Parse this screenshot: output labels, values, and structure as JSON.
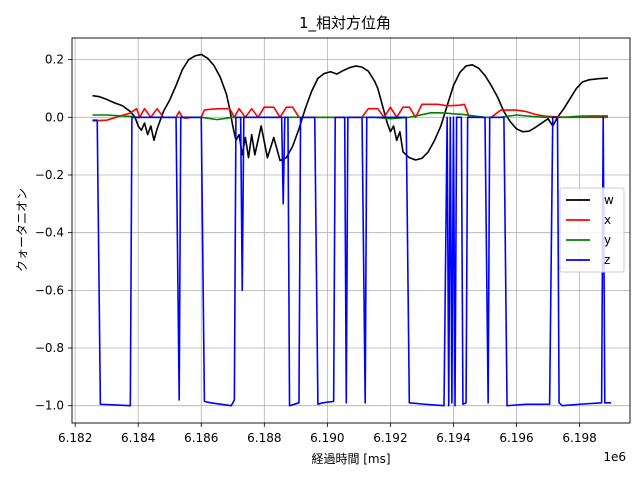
{
  "chart_data": {
    "type": "line",
    "title": "1_相対方位角",
    "xlabel": "経過時間 [ms]",
    "ylabel": "クォータニオン",
    "x_offset_label": "1e6",
    "xlim": [
      6.1819,
      6.1996
    ],
    "ylim": [
      -1.06,
      0.275
    ],
    "xticks": [
      6.182,
      6.184,
      6.186,
      6.188,
      6.19,
      6.192,
      6.194,
      6.196,
      6.198
    ],
    "xtick_labels": [
      "6.182",
      "6.184",
      "6.186",
      "6.188",
      "6.190",
      "6.192",
      "6.194",
      "6.196",
      "6.198"
    ],
    "yticks": [
      0.2,
      0.0,
      -0.2,
      -0.4,
      -0.6,
      -0.8,
      -1.0
    ],
    "ytick_labels": [
      "0.2",
      "0.0",
      "−0.2",
      "−0.4",
      "−0.6",
      "−0.8",
      "−1.0"
    ],
    "grid": true,
    "legend_position": "right",
    "series": [
      {
        "name": "w",
        "color": "#000000",
        "points": [
          [
            6.18255,
            0.075
          ],
          [
            6.18275,
            0.072
          ],
          [
            6.183,
            0.062
          ],
          [
            6.18325,
            0.05
          ],
          [
            6.1835,
            0.04
          ],
          [
            6.18375,
            0.02
          ],
          [
            6.1839,
            0.0
          ],
          [
            6.184,
            -0.03
          ],
          [
            6.1841,
            -0.045
          ],
          [
            6.1842,
            -0.02
          ],
          [
            6.1843,
            -0.06
          ],
          [
            6.1844,
            -0.03
          ],
          [
            6.1845,
            -0.08
          ],
          [
            6.1846,
            -0.04
          ],
          [
            6.1848,
            0.02
          ],
          [
            6.185,
            0.06
          ],
          [
            6.1852,
            0.11
          ],
          [
            6.1854,
            0.165
          ],
          [
            6.1856,
            0.2
          ],
          [
            6.1858,
            0.213
          ],
          [
            6.186,
            0.218
          ],
          [
            6.1862,
            0.205
          ],
          [
            6.1864,
            0.18
          ],
          [
            6.1866,
            0.14
          ],
          [
            6.1868,
            0.08
          ],
          [
            6.1869,
            0.03
          ],
          [
            6.187,
            -0.03
          ],
          [
            6.1871,
            -0.08
          ],
          [
            6.1872,
            -0.06
          ],
          [
            6.1873,
            -0.13
          ],
          [
            6.1874,
            -0.07
          ],
          [
            6.1875,
            -0.14
          ],
          [
            6.1876,
            -0.06
          ],
          [
            6.1877,
            -0.13
          ],
          [
            6.1879,
            -0.03
          ],
          [
            6.1881,
            -0.14
          ],
          [
            6.1883,
            -0.07
          ],
          [
            6.1885,
            -0.15
          ],
          [
            6.1887,
            -0.14
          ],
          [
            6.1889,
            -0.1
          ],
          [
            6.1891,
            -0.04
          ],
          [
            6.1893,
            0.03
          ],
          [
            6.1895,
            0.09
          ],
          [
            6.1897,
            0.135
          ],
          [
            6.1899,
            0.152
          ],
          [
            6.1901,
            0.158
          ],
          [
            6.1903,
            0.15
          ],
          [
            6.1905,
            0.162
          ],
          [
            6.1907,
            0.172
          ],
          [
            6.1909,
            0.178
          ],
          [
            6.1911,
            0.174
          ],
          [
            6.1913,
            0.16
          ],
          [
            6.1915,
            0.125
          ],
          [
            6.1916,
            0.1
          ],
          [
            6.1917,
            0.06
          ],
          [
            6.1918,
            0.02
          ],
          [
            6.1919,
            -0.02
          ],
          [
            6.192,
            -0.05
          ],
          [
            6.1921,
            -0.03
          ],
          [
            6.1922,
            -0.08
          ],
          [
            6.1923,
            -0.05
          ],
          [
            6.1924,
            -0.12
          ],
          [
            6.1926,
            -0.14
          ],
          [
            6.1928,
            -0.148
          ],
          [
            6.193,
            -0.142
          ],
          [
            6.1932,
            -0.12
          ],
          [
            6.1934,
            -0.08
          ],
          [
            6.1936,
            -0.03
          ],
          [
            6.1938,
            0.04
          ],
          [
            6.194,
            0.11
          ],
          [
            6.1942,
            0.155
          ],
          [
            6.1944,
            0.178
          ],
          [
            6.1946,
            0.182
          ],
          [
            6.1948,
            0.17
          ],
          [
            6.195,
            0.145
          ],
          [
            6.1952,
            0.11
          ],
          [
            6.1954,
            0.07
          ],
          [
            6.1956,
            0.02
          ],
          [
            6.1958,
            -0.015
          ],
          [
            6.196,
            -0.04
          ],
          [
            6.1962,
            -0.05
          ],
          [
            6.1964,
            -0.048
          ],
          [
            6.1966,
            -0.035
          ],
          [
            6.1968,
            -0.02
          ],
          [
            6.197,
            -0.005
          ],
          [
            6.19715,
            -0.03
          ],
          [
            6.1973,
            0.0
          ],
          [
            6.1975,
            0.03
          ],
          [
            6.1977,
            0.065
          ],
          [
            6.1979,
            0.1
          ],
          [
            6.1981,
            0.123
          ],
          [
            6.1983,
            0.13
          ],
          [
            6.1986,
            0.134
          ],
          [
            6.1989,
            0.136
          ]
        ]
      },
      {
        "name": "x",
        "color": "#ff0000",
        "points": [
          [
            6.18255,
            -0.012
          ],
          [
            6.183,
            -0.01
          ],
          [
            6.18375,
            0.015
          ],
          [
            6.18395,
            0.03
          ],
          [
            6.18405,
            0.0
          ],
          [
            6.1842,
            0.03
          ],
          [
            6.1844,
            0.0
          ],
          [
            6.1846,
            0.03
          ],
          [
            6.1848,
            0.0
          ],
          [
            6.185,
            0.0
          ],
          [
            6.1852,
            0.0
          ],
          [
            6.1853,
            0.02
          ],
          [
            6.1854,
            0.0
          ],
          [
            6.1855,
            -0.003
          ],
          [
            6.1857,
            0.0
          ],
          [
            6.186,
            0.0
          ],
          [
            6.1861,
            0.025
          ],
          [
            6.1863,
            0.028
          ],
          [
            6.1866,
            0.03
          ],
          [
            6.1869,
            0.03
          ],
          [
            6.18705,
            0.0
          ],
          [
            6.1872,
            0.03
          ],
          [
            6.1874,
            0.0
          ],
          [
            6.1876,
            0.03
          ],
          [
            6.1878,
            0.0
          ],
          [
            6.188,
            0.035
          ],
          [
            6.1883,
            0.035
          ],
          [
            6.1885,
            0.0
          ],
          [
            6.1887,
            0.035
          ],
          [
            6.1889,
            0.035
          ],
          [
            6.1891,
            0.0
          ],
          [
            6.1893,
            0.0
          ],
          [
            6.1895,
            0.0
          ],
          [
            6.1911,
            0.0
          ],
          [
            6.1913,
            0.03
          ],
          [
            6.1916,
            0.03
          ],
          [
            6.1918,
            0.0
          ],
          [
            6.192,
            0.035
          ],
          [
            6.1922,
            0.0
          ],
          [
            6.1924,
            0.035
          ],
          [
            6.1926,
            0.035
          ],
          [
            6.1928,
            0.0
          ],
          [
            6.193,
            0.045
          ],
          [
            6.1935,
            0.045
          ],
          [
            6.1938,
            0.04
          ],
          [
            6.1942,
            0.042
          ],
          [
            6.19435,
            0.045
          ],
          [
            6.1945,
            0.0
          ],
          [
            6.1947,
            0.0
          ],
          [
            6.1949,
            0.0
          ],
          [
            6.1952,
            0.0
          ],
          [
            6.1955,
            0.025
          ],
          [
            6.196,
            0.025
          ],
          [
            6.1963,
            0.02
          ],
          [
            6.1966,
            0.01
          ],
          [
            6.1969,
            0.004
          ],
          [
            6.1972,
            0.002
          ],
          [
            6.1976,
            0.0
          ],
          [
            6.1984,
            0.0
          ],
          [
            6.1989,
            0.0
          ]
        ]
      },
      {
        "name": "y",
        "color": "#008000",
        "points": [
          [
            6.18255,
            0.008
          ],
          [
            6.183,
            0.008
          ],
          [
            6.18375,
            0.003
          ],
          [
            6.184,
            0.0
          ],
          [
            6.185,
            0.0
          ],
          [
            6.186,
            0.0
          ],
          [
            6.1865,
            -0.008
          ],
          [
            6.187,
            0.0
          ],
          [
            6.188,
            0.0
          ],
          [
            6.1892,
            0.0
          ],
          [
            6.19,
            0.0
          ],
          [
            6.191,
            0.0
          ],
          [
            6.1915,
            0.0
          ],
          [
            6.192,
            -0.005
          ],
          [
            6.1926,
            0.0
          ],
          [
            6.1933,
            0.016
          ],
          [
            6.1937,
            0.015
          ],
          [
            6.194,
            0.012
          ],
          [
            6.1943,
            0.01
          ],
          [
            6.1947,
            0.004
          ],
          [
            6.195,
            0.0
          ],
          [
            6.1955,
            0.0
          ],
          [
            6.196,
            0.008
          ],
          [
            6.1963,
            0.005
          ],
          [
            6.1966,
            0.002
          ],
          [
            6.197,
            0.0
          ],
          [
            6.1975,
            0.0
          ],
          [
            6.198,
            0.004
          ],
          [
            6.1984,
            0.005
          ],
          [
            6.1989,
            0.005
          ]
        ]
      },
      {
        "name": "z",
        "color": "#0000ff",
        "points": [
          [
            6.18255,
            -0.01
          ],
          [
            6.1827,
            -0.01
          ],
          [
            6.1828,
            -0.995
          ],
          [
            6.18375,
            -1.0
          ],
          [
            6.1838,
            0.0
          ],
          [
            6.1852,
            0.0
          ],
          [
            6.1853,
            -0.98
          ],
          [
            6.18535,
            0.0
          ],
          [
            6.186,
            0.0
          ],
          [
            6.1861,
            -0.985
          ],
          [
            6.1863,
            -0.99
          ],
          [
            6.18695,
            -1.0
          ],
          [
            6.18705,
            -0.98
          ],
          [
            6.1871,
            0.0
          ],
          [
            6.18725,
            0.0
          ],
          [
            6.1873,
            -0.6
          ],
          [
            6.18735,
            0.0
          ],
          [
            6.188,
            0.0
          ],
          [
            6.18855,
            0.0
          ],
          [
            6.1886,
            -0.3
          ],
          [
            6.18865,
            0.0
          ],
          [
            6.18875,
            0.0
          ],
          [
            6.1888,
            -1.0
          ],
          [
            6.1891,
            -0.99
          ],
          [
            6.18915,
            0.0
          ],
          [
            6.1896,
            0.0
          ],
          [
            6.1897,
            -0.995
          ],
          [
            6.18985,
            -0.99
          ],
          [
            6.1902,
            -0.985
          ],
          [
            6.19025,
            0.0
          ],
          [
            6.19055,
            0.0
          ],
          [
            6.1906,
            -0.99
          ],
          [
            6.19065,
            0.0
          ],
          [
            6.1911,
            0.0
          ],
          [
            6.1912,
            -0.99
          ],
          [
            6.19125,
            0.0
          ],
          [
            6.1925,
            0.0
          ],
          [
            6.1926,
            -0.99
          ],
          [
            6.1931,
            -0.995
          ],
          [
            6.1937,
            -1.0
          ],
          [
            6.1938,
            0.0
          ],
          [
            6.19385,
            -1.0
          ],
          [
            6.1939,
            0.0
          ],
          [
            6.19395,
            -0.99
          ],
          [
            6.194,
            0.0
          ],
          [
            6.19405,
            -1.0
          ],
          [
            6.1941,
            0.0
          ],
          [
            6.19425,
            0.0
          ],
          [
            6.1943,
            -0.995
          ],
          [
            6.1944,
            -0.99
          ],
          [
            6.19445,
            0.0
          ],
          [
            6.195,
            0.0
          ],
          [
            6.1951,
            -0.99
          ],
          [
            6.19515,
            0.0
          ],
          [
            6.1956,
            0.0
          ],
          [
            6.1957,
            -1.0
          ],
          [
            6.1963,
            -0.995
          ],
          [
            6.19705,
            -0.995
          ],
          [
            6.19715,
            0.0
          ],
          [
            6.1973,
            0.0
          ],
          [
            6.19735,
            -0.99
          ],
          [
            6.19745,
            -1.0
          ],
          [
            6.198,
            -0.995
          ],
          [
            6.1987,
            -0.99
          ],
          [
            6.19875,
            0.0
          ],
          [
            6.1988,
            -0.99
          ],
          [
            6.199,
            -0.99
          ]
        ]
      }
    ]
  }
}
